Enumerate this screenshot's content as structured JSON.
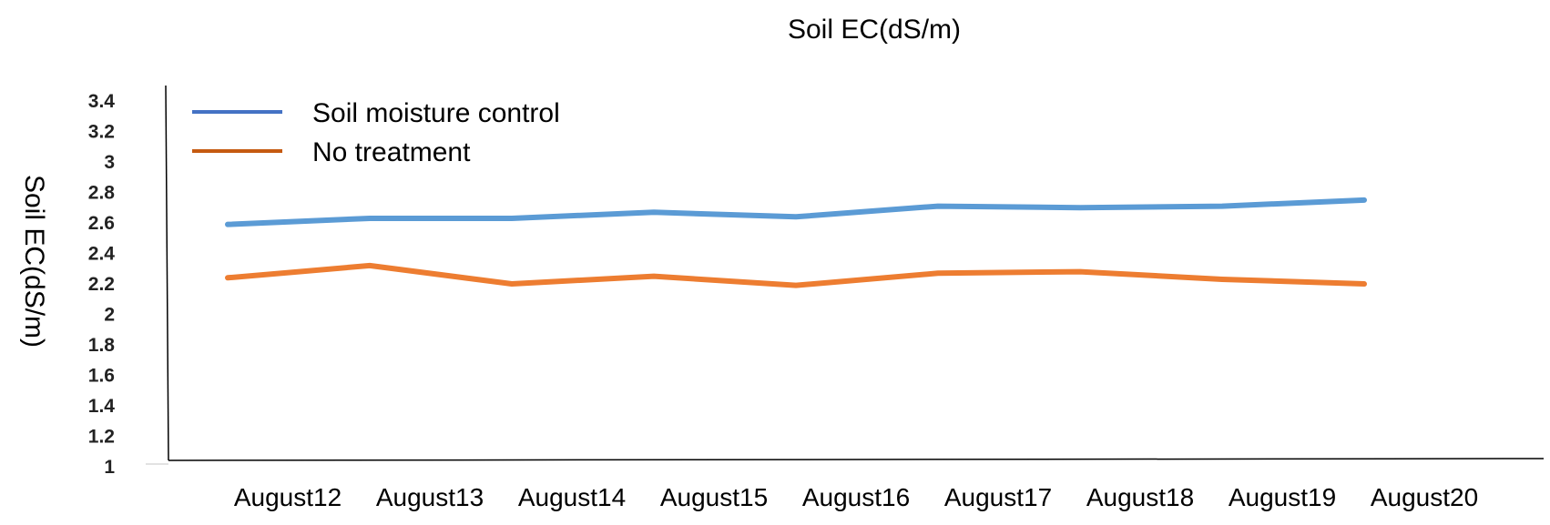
{
  "chart_data": {
    "type": "line",
    "title": "Soil  EC(dS/m)",
    "xlabel": "",
    "ylabel": "Soil  EC(dS/m)",
    "ylim": [
      1,
      3.4
    ],
    "yticks": [
      "1",
      "1.2",
      "1.4",
      "1.6",
      "1.8",
      "2",
      "2.2",
      "2.4",
      "2.6",
      "2.8",
      "3",
      "3.2",
      "3.4"
    ],
    "categories": [
      "August12",
      "August13",
      "August14",
      "August15",
      "August16",
      "August17",
      "August18",
      "August19",
      "August20"
    ],
    "series": [
      {
        "name": "Soil  moisture  control",
        "color": "#5b9bd5",
        "legend_color": "#4472c4",
        "values": [
          2.59,
          2.63,
          2.63,
          2.67,
          2.64,
          2.71,
          2.7,
          2.71,
          2.75
        ]
      },
      {
        "name": "No  treatment",
        "color": "#ed7d31",
        "legend_color": "#c55a11",
        "values": [
          2.24,
          2.32,
          2.2,
          2.25,
          2.19,
          2.27,
          2.28,
          2.23,
          2.2
        ]
      }
    ],
    "legend_position": "top-left",
    "grid": false
  }
}
